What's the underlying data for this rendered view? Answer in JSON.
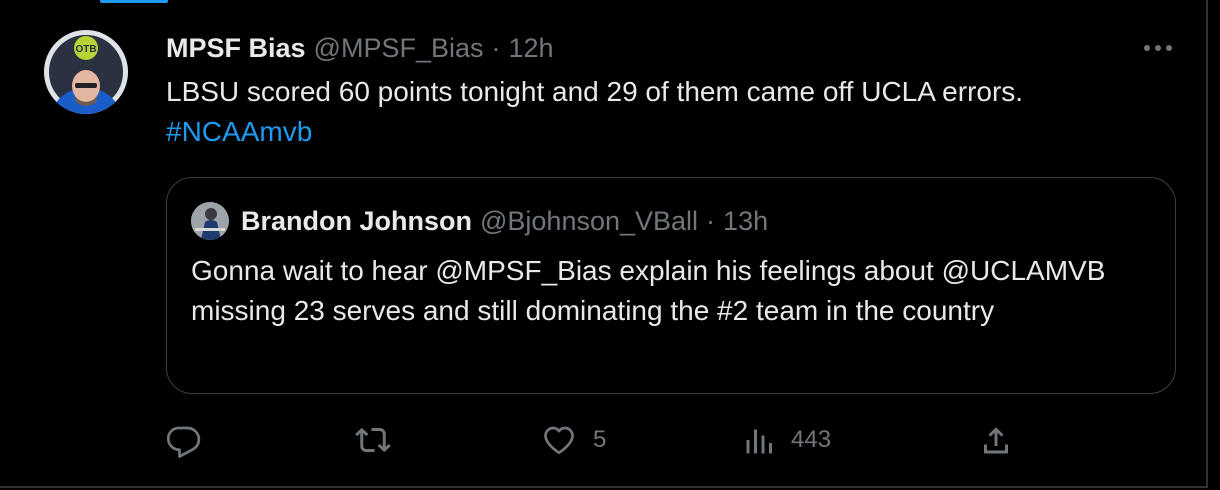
{
  "tweet": {
    "display_name": "MPSF Bias",
    "handle": "@MPSF_Bias",
    "separator": "·",
    "time": "12h",
    "text": "LBSU scored 60 points tonight and 29 of them came off UCLA errors.",
    "hashtag": "#NCAAmvb",
    "avatar_badge_text": "OTB"
  },
  "quote": {
    "display_name": "Brandon Johnson",
    "handle": "@Bjohnson_VBall",
    "separator": "·",
    "time": "13h",
    "text": "Gonna wait to hear @MPSF_Bias explain his feelings about @UCLAMVB missing 23 serves and still dominating the #2 team in the country"
  },
  "actions": {
    "reply": {
      "icon": "reply-icon",
      "count": ""
    },
    "retweet": {
      "icon": "retweet-icon",
      "count": ""
    },
    "like": {
      "icon": "heart-icon",
      "count": "5"
    },
    "views": {
      "icon": "views-icon",
      "count": "443"
    },
    "share": {
      "icon": "share-icon"
    }
  },
  "colors": {
    "background": "#000000",
    "text_primary": "#e7e9ea",
    "text_secondary": "#71767b",
    "accent": "#1d9bf0",
    "border": "#2f3336"
  }
}
